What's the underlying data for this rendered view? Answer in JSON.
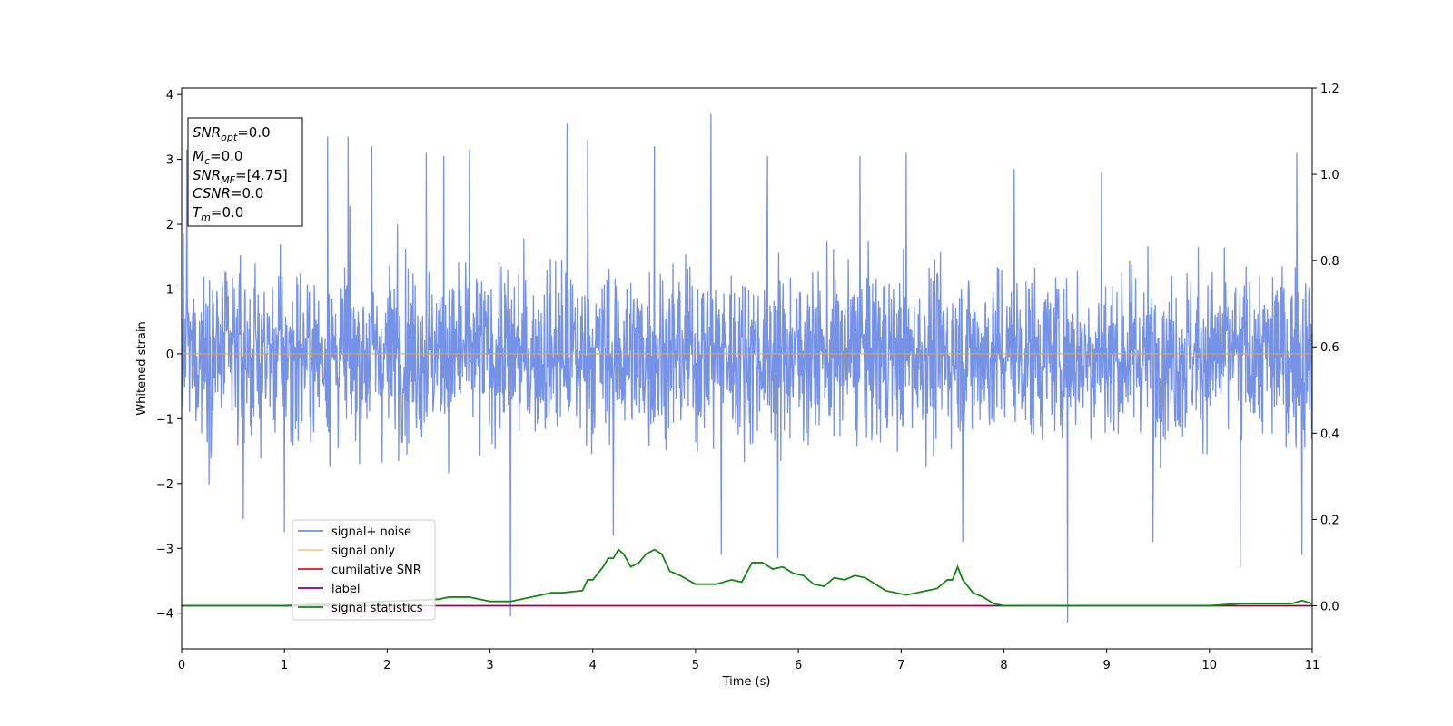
{
  "chart_data": {
    "type": "line",
    "xlabel": "Time (s)",
    "ylabel": "Whitened strain",
    "xlim": [
      0,
      11
    ],
    "ylim": [
      -4.55,
      4.1
    ],
    "y2lim": [
      -0.1,
      1.2
    ],
    "x_ticks": [
      0,
      1,
      2,
      3,
      4,
      5,
      6,
      7,
      8,
      9,
      10,
      11
    ],
    "y_ticks": [
      -4,
      -3,
      -2,
      -1,
      0,
      1,
      2,
      3,
      4
    ],
    "y2_ticks": [
      0.0,
      0.2,
      0.4,
      0.6,
      0.8,
      1.0,
      1.2
    ],
    "y_tick_labels": [
      "−4",
      "−3",
      "−2",
      "−1",
      "0",
      "1",
      "2",
      "3",
      "4"
    ],
    "y2_tick_labels": [
      "0.0",
      "0.2",
      "0.4",
      "0.6",
      "0.8",
      "1.0",
      "1.2"
    ],
    "annotation": {
      "snr_opt": "=0.0",
      "mc": "=0.0",
      "snr_mf": "=[4.75]",
      "csnr": "=0.0",
      "tm": "=0.0"
    },
    "legend_placement": "lower-left",
    "series": [
      {
        "name": "signal+ noise",
        "color": "#6f8ce6",
        "axis": "left",
        "kind": "noise",
        "duration": 11,
        "envelope_std": 0.9,
        "spikes": [
          [
            0.05,
            3.15
          ],
          [
            1.42,
            3.35
          ],
          [
            1.62,
            3.35
          ],
          [
            1.85,
            3.2
          ],
          [
            2.1,
            2.0
          ],
          [
            2.38,
            3.1
          ],
          [
            2.55,
            3.05
          ],
          [
            2.8,
            3.15
          ],
          [
            3.2,
            -4.05
          ],
          [
            3.75,
            3.55
          ],
          [
            3.95,
            3.3
          ],
          [
            4.2,
            -2.8
          ],
          [
            4.6,
            3.2
          ],
          [
            5.15,
            3.7
          ],
          [
            5.25,
            -3.1
          ],
          [
            5.8,
            -3.15
          ],
          [
            5.7,
            3.05
          ],
          [
            6.6,
            3.05
          ],
          [
            7.05,
            3.1
          ],
          [
            7.6,
            -2.9
          ],
          [
            8.1,
            2.85
          ],
          [
            8.62,
            -4.15
          ],
          [
            8.95,
            2.8
          ],
          [
            9.45,
            -2.9
          ],
          [
            10.3,
            -3.3
          ],
          [
            10.85,
            3.1
          ],
          [
            10.9,
            -3.1
          ],
          [
            1.0,
            -2.75
          ],
          [
            0.6,
            -2.55
          ]
        ]
      },
      {
        "name": "signal only",
        "color": "#f5a623",
        "axis": "left",
        "x": [
          0,
          11
        ],
        "y": [
          0,
          0
        ]
      },
      {
        "name": "cumilative SNR",
        "color": "#ee1111",
        "axis": "right",
        "x": [
          0,
          11
        ],
        "y": [
          0,
          0
        ]
      },
      {
        "name": "label",
        "color": "#800080",
        "axis": "right",
        "x": [
          0,
          11
        ],
        "y": [
          0,
          0
        ]
      },
      {
        "name": "signal statistics",
        "color": "#118811",
        "axis": "right",
        "x": [
          0,
          0.5,
          1.0,
          1.5,
          2.0,
          2.5,
          2.6,
          2.8,
          3.0,
          3.2,
          3.4,
          3.6,
          3.7,
          3.9,
          3.95,
          4.0,
          4.1,
          4.15,
          4.2,
          4.25,
          4.3,
          4.37,
          4.45,
          4.52,
          4.6,
          4.67,
          4.75,
          4.85,
          5.0,
          5.2,
          5.35,
          5.45,
          5.55,
          5.65,
          5.75,
          5.85,
          5.95,
          6.05,
          6.15,
          6.25,
          6.35,
          6.45,
          6.55,
          6.65,
          6.75,
          6.85,
          6.95,
          7.05,
          7.15,
          7.25,
          7.35,
          7.45,
          7.5,
          7.55,
          7.6,
          7.7,
          7.8,
          7.9,
          8.0,
          8.3,
          8.6,
          9.0,
          9.5,
          9.8,
          10.0,
          10.3,
          10.5,
          10.8,
          10.9,
          11.0
        ],
        "y": [
          0.0,
          0.0,
          0.0,
          0.005,
          0.01,
          0.015,
          0.02,
          0.02,
          0.01,
          0.01,
          0.02,
          0.03,
          0.03,
          0.035,
          0.06,
          0.06,
          0.09,
          0.11,
          0.11,
          0.13,
          0.12,
          0.09,
          0.1,
          0.12,
          0.13,
          0.12,
          0.08,
          0.07,
          0.05,
          0.05,
          0.06,
          0.055,
          0.1,
          0.1,
          0.085,
          0.09,
          0.075,
          0.07,
          0.05,
          0.045,
          0.065,
          0.06,
          0.07,
          0.065,
          0.05,
          0.035,
          0.03,
          0.025,
          0.03,
          0.035,
          0.04,
          0.06,
          0.06,
          0.09,
          0.06,
          0.03,
          0.02,
          0.005,
          0.0,
          0.0,
          0.0,
          0.0,
          0.0,
          0.0,
          0.0,
          0.005,
          0.005,
          0.005,
          0.012,
          0.005
        ]
      }
    ]
  }
}
